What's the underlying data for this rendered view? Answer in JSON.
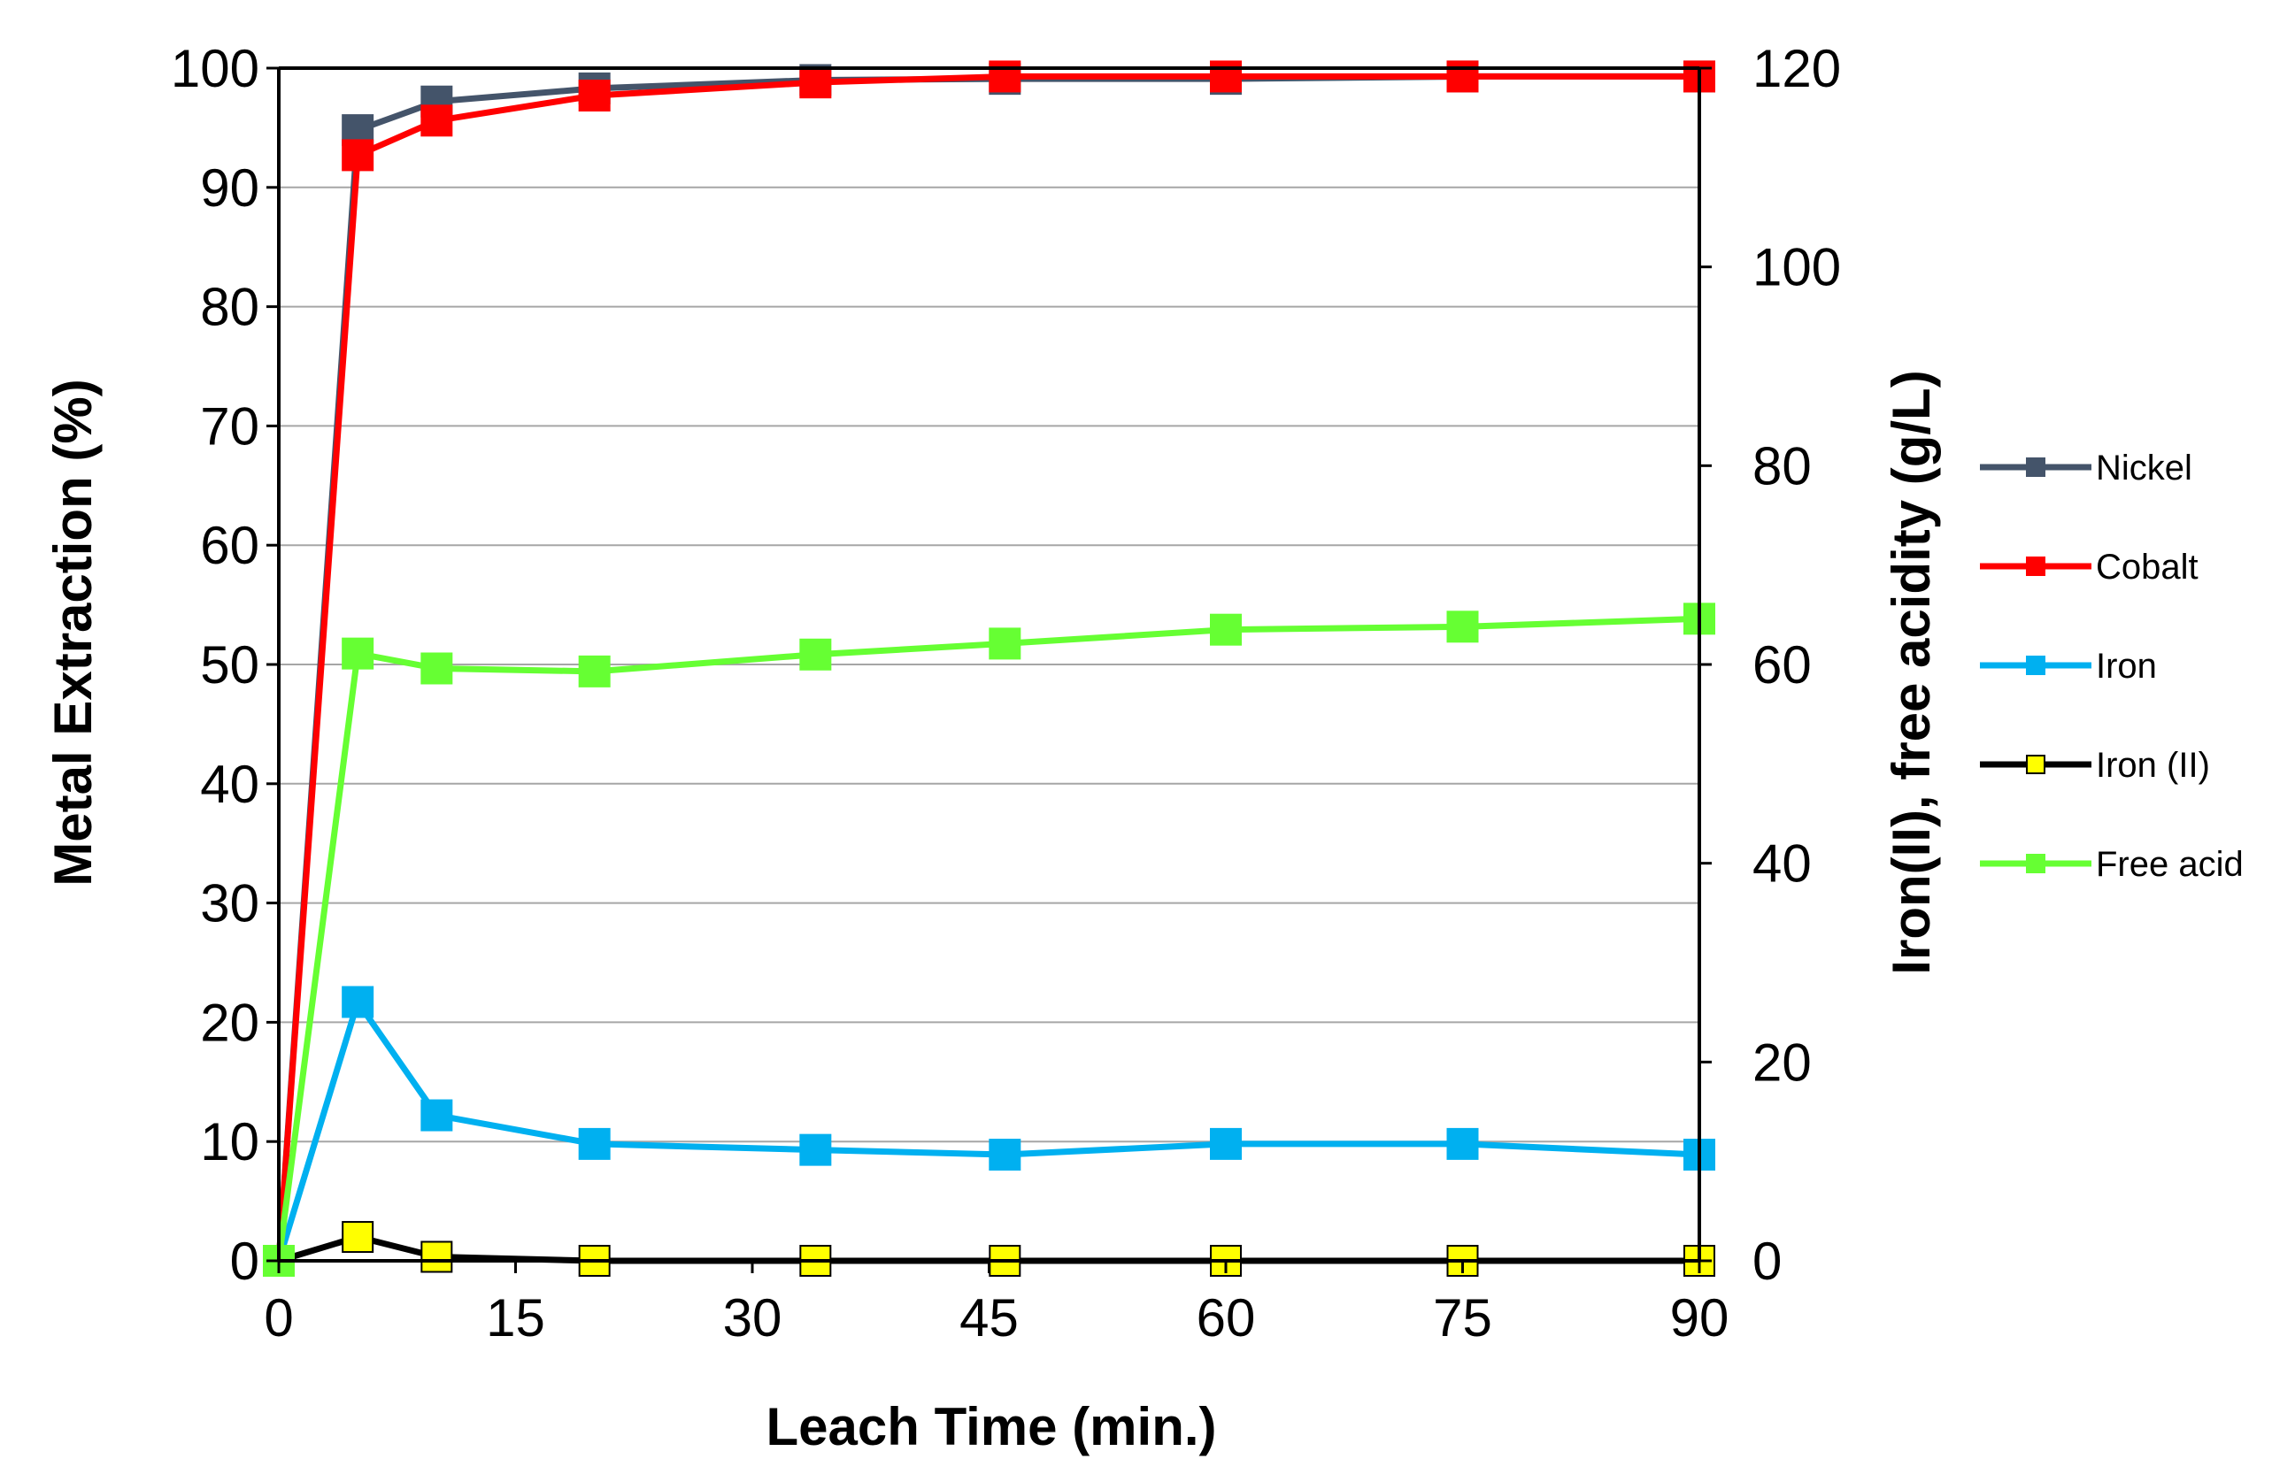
{
  "chart_data": {
    "type": "line",
    "xlabel": "Leach Time (min.)",
    "ylabel": "Metal Extraction (%)",
    "y2label": "Iron(II), free acidity (g/L)",
    "xlim": [
      0,
      90
    ],
    "ylim": [
      0,
      100
    ],
    "y2lim": [
      0,
      120
    ],
    "xticks": [
      0,
      15,
      30,
      45,
      60,
      75,
      90
    ],
    "yticks": [
      0,
      10,
      20,
      30,
      40,
      50,
      60,
      70,
      80,
      90,
      100
    ],
    "y2ticks": [
      0,
      20,
      40,
      60,
      80,
      100,
      120
    ],
    "grid": true,
    "legend_position": "right",
    "series": [
      {
        "name": "Nickel",
        "axis": "left",
        "color": "#44546A",
        "marker_fill": "#44546A",
        "x": [
          0,
          5,
          10,
          20,
          34,
          46,
          60,
          75,
          90
        ],
        "y": [
          0,
          94.8,
          97.2,
          98.3,
          99.0,
          99.1,
          99.1,
          99.3,
          99.3
        ]
      },
      {
        "name": "Cobalt",
        "axis": "left",
        "color": "#FF0000",
        "marker_fill": "#FF0000",
        "x": [
          0,
          5,
          10,
          20,
          34,
          46,
          60,
          75,
          90
        ],
        "y": [
          0,
          92.7,
          95.6,
          97.7,
          98.8,
          99.3,
          99.3,
          99.3,
          99.3
        ]
      },
      {
        "name": "Iron",
        "axis": "left",
        "color": "#00B0F0",
        "marker_fill": "#00B0F0",
        "x": [
          0,
          5,
          10,
          20,
          34,
          46,
          60,
          75,
          90
        ],
        "y": [
          0,
          21.7,
          12.2,
          9.8,
          9.3,
          8.9,
          9.8,
          9.8,
          8.9
        ]
      },
      {
        "name": "Iron (II)",
        "axis": "right",
        "color": "#000000",
        "marker_fill": "#FFFF00",
        "x": [
          0,
          5,
          10,
          20,
          34,
          46,
          60,
          75,
          90
        ],
        "y": [
          0,
          2.4,
          0.4,
          0,
          0,
          0,
          0,
          0,
          0
        ]
      },
      {
        "name": "Free acid",
        "axis": "right",
        "color": "#66FF33",
        "marker_fill": "#66FF33",
        "x": [
          0,
          5,
          10,
          20,
          34,
          46,
          60,
          75,
          90
        ],
        "y": [
          0,
          61.1,
          59.6,
          59.3,
          61.0,
          62.1,
          63.5,
          63.8,
          64.6
        ]
      }
    ]
  }
}
